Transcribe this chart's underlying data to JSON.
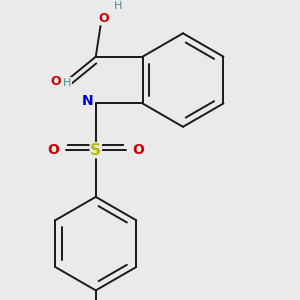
{
  "background_color": "#eaeaea",
  "bond_color": "#1a1a1a",
  "bond_width": 1.4,
  "atom_colors": {
    "O": "#cc0000",
    "N": "#0000cc",
    "S": "#b8b800",
    "H": "#4a9090",
    "C": "#1a1a1a"
  },
  "figsize": [
    3.0,
    3.0
  ],
  "dpi": 100,
  "xlim": [
    -1.8,
    1.8
  ],
  "ylim": [
    -3.2,
    2.2
  ]
}
